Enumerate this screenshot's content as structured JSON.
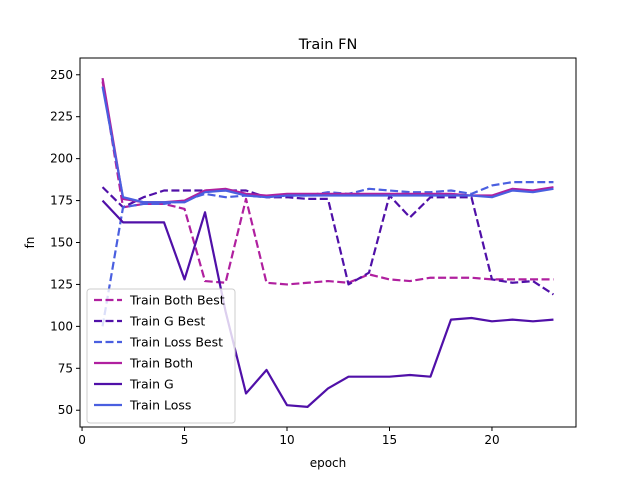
{
  "chart_data": {
    "type": "line",
    "title": "Train FN",
    "xlabel": "epoch",
    "ylabel": "fn",
    "xlim": [
      -0.1,
      24.1
    ],
    "ylim": [
      40,
      260
    ],
    "xticks": [
      0,
      5,
      10,
      15,
      20
    ],
    "yticks": [
      50,
      75,
      100,
      125,
      150,
      175,
      200,
      225,
      250
    ],
    "grid": false,
    "legend_position": "lower-left",
    "x": [
      1,
      2,
      3,
      4,
      5,
      6,
      7,
      8,
      9,
      10,
      11,
      12,
      13,
      14,
      15,
      16,
      17,
      18,
      19,
      20,
      21,
      22,
      23
    ],
    "series": [
      {
        "name": "Train Both Best",
        "color": "#b0209f",
        "dashed": true,
        "values": [
          246,
          171,
          173,
          173,
          170,
          127,
          126,
          176,
          126,
          125,
          126,
          127,
          126,
          131,
          128,
          127,
          129,
          129,
          129,
          128,
          128,
          128,
          128
        ]
      },
      {
        "name": "Train G Best",
        "color": "#5010a8",
        "dashed": true,
        "values": [
          183,
          171,
          177,
          181,
          181,
          181,
          181,
          181,
          177,
          177,
          176,
          176,
          125,
          132,
          178,
          165,
          177,
          177,
          177,
          128,
          126,
          127,
          119
        ]
      },
      {
        "name": "Train Loss Best",
        "color": "#4a5fe0",
        "dashed": true,
        "values": [
          100,
          171,
          173,
          173,
          175,
          179,
          177,
          178,
          177,
          178,
          178,
          180,
          179,
          182,
          181,
          180,
          180,
          181,
          179,
          184,
          186,
          186,
          186
        ]
      },
      {
        "name": "Train Both",
        "color": "#b0209f",
        "dashed": false,
        "values": [
          248,
          176,
          174,
          174,
          175,
          181,
          182,
          179,
          178,
          179,
          179,
          179,
          179,
          179,
          179,
          179,
          179,
          179,
          178,
          178,
          182,
          181,
          183
        ]
      },
      {
        "name": "Train G",
        "color": "#5010a8",
        "dashed": false,
        "values": [
          175,
          162,
          162,
          162,
          128,
          168,
          109,
          60,
          74,
          53,
          52,
          63,
          70,
          70,
          70,
          71,
          70,
          104,
          105,
          103,
          104,
          103,
          104
        ]
      },
      {
        "name": "Train Loss",
        "color": "#4a5fe0",
        "dashed": false,
        "values": [
          243,
          177,
          174,
          174,
          174,
          180,
          181,
          178,
          177,
          178,
          178,
          178,
          178,
          178,
          178,
          178,
          178,
          178,
          178,
          177,
          181,
          180,
          182
        ]
      }
    ]
  }
}
